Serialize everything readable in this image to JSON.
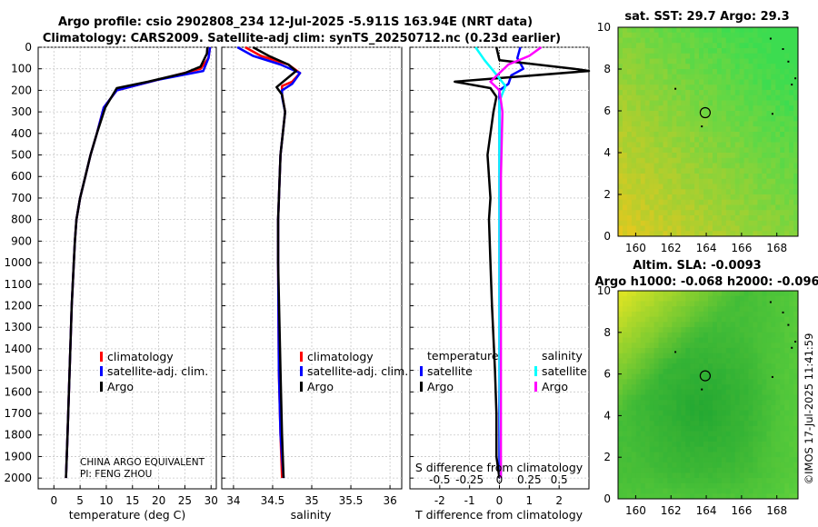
{
  "titles": {
    "line1": "Argo profile: csio 2902808_234 12-Jul-2025 -5.911S 163.94E (NRT data)",
    "line2": "Climatology: CARS2009. Satellite-adj clim: synTS_20250712.nc (0.23d earlier)",
    "sst": "sat. SST: 29.7 Argo: 29.3",
    "sla1": "Altim. SLA: -0.0093",
    "sla2": "Argo h1000: -0.068 h2000: -0.096"
  },
  "credit": "CHINA ARGO EQUIVALENT",
  "pi": "PI: FENG ZHOU",
  "timestamp": "©IMOS 17-Jul-2025 11:41:59",
  "legend": {
    "clim": "climatology",
    "sat": "satellite-adj. clim.",
    "argo": "Argo",
    "temperature": "temperature",
    "salinity": "salinity",
    "satellite": "satellite",
    "argo2": "Argo"
  },
  "colors": {
    "clim": "#ff0000",
    "sat": "#0000ff",
    "argo": "#000000",
    "t_sat": "#0000ff",
    "t_argo": "#000000",
    "s_sat": "#00ffff",
    "s_argo": "#ff00ff",
    "map_green": "#3ec93a",
    "map_yellow": "#e8e23a"
  },
  "chart_data": [
    {
      "type": "line",
      "name": "temperature-profile",
      "xlabel": "temperature (deg C)",
      "ylabel": "",
      "xlim": [
        -3,
        31
      ],
      "ylim": [
        2050,
        0
      ],
      "xticks": [
        0,
        5,
        10,
        15,
        20,
        25,
        30
      ],
      "yticks": [
        0,
        100,
        200,
        300,
        400,
        500,
        600,
        700,
        800,
        900,
        1000,
        1100,
        1200,
        1300,
        1400,
        1500,
        1600,
        1700,
        1800,
        1900,
        2000
      ],
      "series": [
        {
          "name": "climatology",
          "color": "clim",
          "points": [
            [
              29.8,
              0
            ],
            [
              29.5,
              50
            ],
            [
              28.0,
              100
            ],
            [
              20,
              150
            ],
            [
              12,
              200
            ],
            [
              9.5,
              280
            ],
            [
              8.2,
              400
            ],
            [
              7,
              500
            ],
            [
              6,
              600
            ],
            [
              5,
              700
            ],
            [
              4.3,
              800
            ],
            [
              4,
              900
            ],
            [
              3.8,
              1000
            ],
            [
              3.4,
              1200
            ],
            [
              3,
              1500
            ],
            [
              2.6,
              1800
            ],
            [
              2.3,
              2000
            ]
          ]
        },
        {
          "name": "satellite-adj. clim.",
          "color": "sat",
          "points": [
            [
              29.8,
              0
            ],
            [
              29.5,
              50
            ],
            [
              28.5,
              110
            ],
            [
              20,
              150
            ],
            [
              12,
              200
            ],
            [
              9.5,
              280
            ],
            [
              8.2,
              400
            ],
            [
              7,
              500
            ],
            [
              6,
              600
            ],
            [
              5,
              700
            ],
            [
              4.3,
              800
            ],
            [
              4,
              900
            ],
            [
              3.8,
              1000
            ],
            [
              3.4,
              1200
            ],
            [
              3,
              1500
            ],
            [
              2.6,
              1800
            ],
            [
              2.3,
              2000
            ]
          ]
        },
        {
          "name": "Argo",
          "color": "argo",
          "points": [
            [
              29.3,
              0
            ],
            [
              29.2,
              30
            ],
            [
              28,
              90
            ],
            [
              25,
              120
            ],
            [
              18,
              160
            ],
            [
              12,
              190
            ],
            [
              9.8,
              280
            ],
            [
              8.2,
              400
            ],
            [
              7,
              500
            ],
            [
              6,
              600
            ],
            [
              5,
              700
            ],
            [
              4.3,
              800
            ],
            [
              4,
              900
            ],
            [
              3.8,
              1000
            ],
            [
              3.4,
              1200
            ],
            [
              3,
              1500
            ],
            [
              2.6,
              1800
            ],
            [
              2.3,
              2000
            ]
          ]
        }
      ]
    },
    {
      "type": "line",
      "name": "salinity-profile",
      "xlabel": "salinity",
      "ylabel": "",
      "xlim": [
        33.85,
        36.15
      ],
      "ylim": [
        2050,
        0
      ],
      "xticks": [
        34,
        34.5,
        35,
        35.5,
        36
      ],
      "yticks": [
        0,
        100,
        200,
        300,
        400,
        500,
        600,
        700,
        800,
        900,
        1000,
        1100,
        1200,
        1300,
        1400,
        1500,
        1600,
        1700,
        1800,
        1900,
        2000
      ],
      "series": [
        {
          "name": "climatology",
          "color": "clim",
          "points": [
            [
              34.15,
              0
            ],
            [
              34.35,
              40
            ],
            [
              34.7,
              80
            ],
            [
              34.85,
              120
            ],
            [
              34.75,
              160
            ],
            [
              34.62,
              180
            ],
            [
              34.62,
              220
            ],
            [
              34.66,
              300
            ],
            [
              34.6,
              500
            ],
            [
              34.57,
              800
            ],
            [
              34.57,
              1000
            ],
            [
              34.58,
              1500
            ],
            [
              34.6,
              1800
            ],
            [
              34.62,
              2000
            ]
          ]
        },
        {
          "name": "satellite-adj. clim.",
          "color": "sat",
          "points": [
            [
              34.05,
              0
            ],
            [
              34.25,
              40
            ],
            [
              34.6,
              80
            ],
            [
              34.85,
              120
            ],
            [
              34.75,
              170
            ],
            [
              34.62,
              200
            ],
            [
              34.62,
              230
            ],
            [
              34.66,
              300
            ],
            [
              34.6,
              500
            ],
            [
              34.57,
              800
            ],
            [
              34.57,
              1000
            ],
            [
              34.58,
              1500
            ],
            [
              34.6,
              1800
            ],
            [
              34.64,
              2000
            ]
          ]
        },
        {
          "name": "Argo",
          "color": "argo",
          "points": [
            [
              34.25,
              0
            ],
            [
              34.45,
              40
            ],
            [
              34.7,
              80
            ],
            [
              34.8,
              110
            ],
            [
              34.6,
              170
            ],
            [
              34.55,
              185
            ],
            [
              34.62,
              220
            ],
            [
              34.66,
              300
            ],
            [
              34.6,
              500
            ],
            [
              34.57,
              800
            ],
            [
              34.57,
              1000
            ],
            [
              34.6,
              1500
            ],
            [
              34.62,
              1800
            ],
            [
              34.64,
              2000
            ]
          ]
        }
      ]
    },
    {
      "type": "line",
      "name": "difference-profile",
      "xlabel": "T difference from climatology",
      "xlabel_top": "S difference from climatology",
      "xlim": [
        -3,
        3
      ],
      "ylim": [
        2050,
        0
      ],
      "xticks": [
        -2,
        -1,
        0,
        1,
        2
      ],
      "xticklabels_S": [
        "-0.5",
        "-0.25",
        "0",
        "0.25",
        "0.5"
      ],
      "series": [
        {
          "name": "temperature satellite",
          "color": "t_sat",
          "points": [
            [
              0.7,
              0
            ],
            [
              0.6,
              50
            ],
            [
              0.8,
              100
            ],
            [
              0.4,
              130
            ],
            [
              0.3,
              170
            ],
            [
              0,
              200
            ],
            [
              0,
              250
            ],
            [
              0,
              300
            ],
            [
              0,
              2000
            ]
          ]
        },
        {
          "name": "temperature Argo",
          "color": "t_argo",
          "points": [
            [
              -0.1,
              0
            ],
            [
              0,
              60
            ],
            [
              2.5,
              100
            ],
            [
              3.0,
              110
            ],
            [
              -1.5,
              160
            ],
            [
              -0.3,
              190
            ],
            [
              -0.1,
              230
            ],
            [
              -0.2,
              300
            ],
            [
              -0.4,
              500
            ],
            [
              -0.3,
              700
            ],
            [
              -0.35,
              800
            ],
            [
              -0.3,
              1000
            ],
            [
              -0.25,
              1200
            ],
            [
              -0.15,
              1500
            ],
            [
              -0.1,
              1700
            ],
            [
              -0.1,
              1900
            ],
            [
              0,
              2000
            ]
          ]
        },
        {
          "name": "salinity satellite",
          "color": "s_sat",
          "points": [
            [
              -0.8,
              0
            ],
            [
              -0.5,
              60
            ],
            [
              -0.2,
              110
            ],
            [
              0.2,
              180
            ],
            [
              0,
              250
            ],
            [
              0,
              400
            ],
            [
              0,
              1000
            ],
            [
              0,
              1500
            ],
            [
              0.05,
              2000
            ]
          ]
        },
        {
          "name": "salinity Argo",
          "color": "s_argo",
          "points": [
            [
              1.4,
              0
            ],
            [
              1.0,
              40
            ],
            [
              0.3,
              80
            ],
            [
              -0.3,
              160
            ],
            [
              0,
              200
            ],
            [
              0.1,
              300
            ],
            [
              0.05,
              600
            ],
            [
              0.05,
              1000
            ],
            [
              0.05,
              1500
            ],
            [
              0.05,
              2000
            ]
          ]
        }
      ]
    },
    {
      "type": "heatmap",
      "name": "sst-map",
      "title": "sat. SST: 29.7 Argo: 29.3",
      "xlim": [
        159,
        169.2
      ],
      "ylim": [
        0,
        10
      ],
      "xticks": [
        160,
        162,
        164,
        166,
        168
      ],
      "yticks": [
        0,
        2,
        4,
        6,
        8,
        10
      ],
      "marker": [
        163.94,
        5.911
      ]
    },
    {
      "type": "heatmap",
      "name": "sla-map",
      "title": "Altim. SLA: -0.0093",
      "xlim": [
        159,
        169.2
      ],
      "ylim": [
        0,
        10
      ],
      "xticks": [
        160,
        162,
        164,
        166,
        168
      ],
      "yticks": [
        0,
        2,
        4,
        6,
        8,
        10
      ],
      "marker": [
        163.94,
        5.911
      ]
    }
  ]
}
